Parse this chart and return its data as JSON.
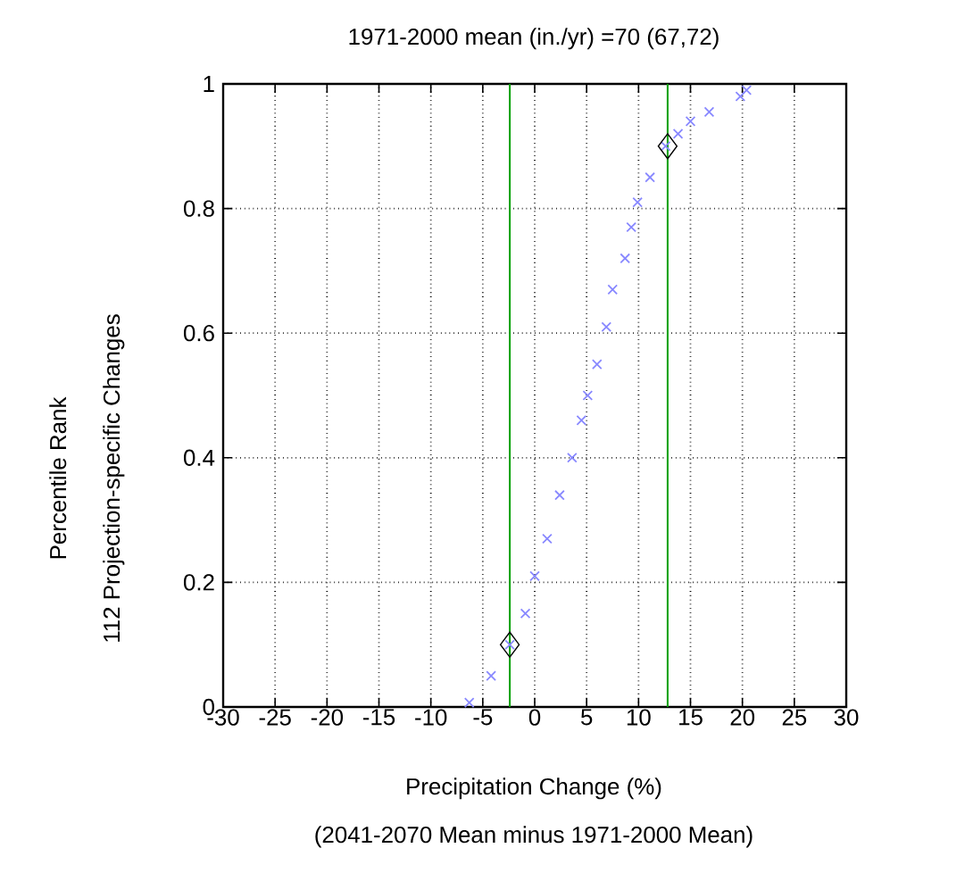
{
  "chart_data": {
    "type": "scatter",
    "title": "1971-2000 mean (in./yr) =70 (67,72)",
    "xlabel": "Precipitation Change (%)",
    "ylabel": "112 Projection-specific Changes",
    "annotations": [
      "(2041-2070 Mean minus 1971-2000 Mean)",
      "Percentile Rank"
    ],
    "xlim": [
      -30,
      30
    ],
    "xticks": [
      -30,
      -25,
      -20,
      -15,
      -10,
      -5,
      0,
      5,
      10,
      15,
      20,
      25,
      30
    ],
    "ylim": [
      0,
      1
    ],
    "yticks": [
      0,
      0.2,
      0.4,
      0.6,
      0.8,
      1
    ],
    "grid": true,
    "series": [
      {
        "color": "#8888ff",
        "marker": "cross",
        "x": [
          -6.3,
          -4.2,
          -2.4,
          -0.9,
          0,
          1.2,
          2.4,
          3.6,
          4.5,
          5.1,
          6.0,
          6.9,
          7.5,
          8.7,
          9.3,
          9.9,
          11.1,
          12.6,
          13.8,
          15,
          16.8,
          19.8,
          20.4
        ],
        "values": [
          0.007,
          0.05,
          0.1,
          0.15,
          0.21,
          0.27,
          0.34,
          0.4,
          0.46,
          0.5,
          0.55,
          0.61,
          0.67,
          0.72,
          0.77,
          0.81,
          0.85,
          0.9,
          0.92,
          0.94,
          0.955,
          0.98,
          0.99
        ]
      },
      {
        "color": "#000000",
        "marker": "diamond",
        "x": [
          -2.4,
          12.8
        ],
        "values": [
          0.1,
          0.9
        ]
      }
    ],
    "ref_lines": [
      {
        "axis": "x",
        "value": -2.4,
        "color": "#00a000"
      },
      {
        "axis": "x",
        "value": 12.8,
        "color": "#00a000"
      }
    ]
  }
}
